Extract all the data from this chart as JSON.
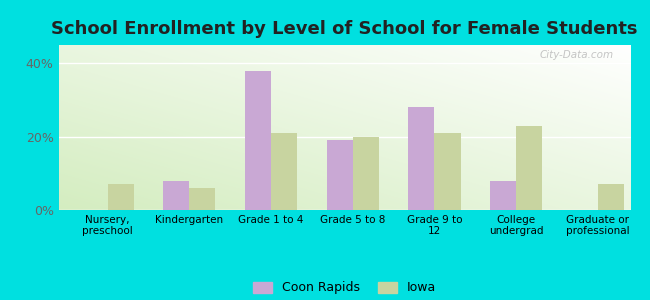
{
  "title": "School Enrollment by Level of School for Female Students",
  "categories": [
    "Nursery,\npreschool",
    "Kindergarten",
    "Grade 1 to 4",
    "Grade 5 to 8",
    "Grade 9 to\n12",
    "College\nundergrad",
    "Graduate or\nprofessional"
  ],
  "coon_rapids": [
    0,
    8,
    38,
    19,
    28,
    8,
    0
  ],
  "iowa": [
    7,
    6,
    21,
    20,
    21,
    23,
    7
  ],
  "coon_rapids_color": "#c9a8d4",
  "iowa_color": "#c8d4a0",
  "background_color": "#00e0e0",
  "plot_bg_top_right": "#ffffff",
  "plot_bg_bottom_left": "#d4edc0",
  "ylim": [
    0,
    45
  ],
  "yticks": [
    0,
    20,
    40
  ],
  "ytick_labels": [
    "0%",
    "20%",
    "40%"
  ],
  "title_fontsize": 13,
  "legend_labels": [
    "Coon Rapids",
    "Iowa"
  ],
  "watermark": "City-Data.com"
}
